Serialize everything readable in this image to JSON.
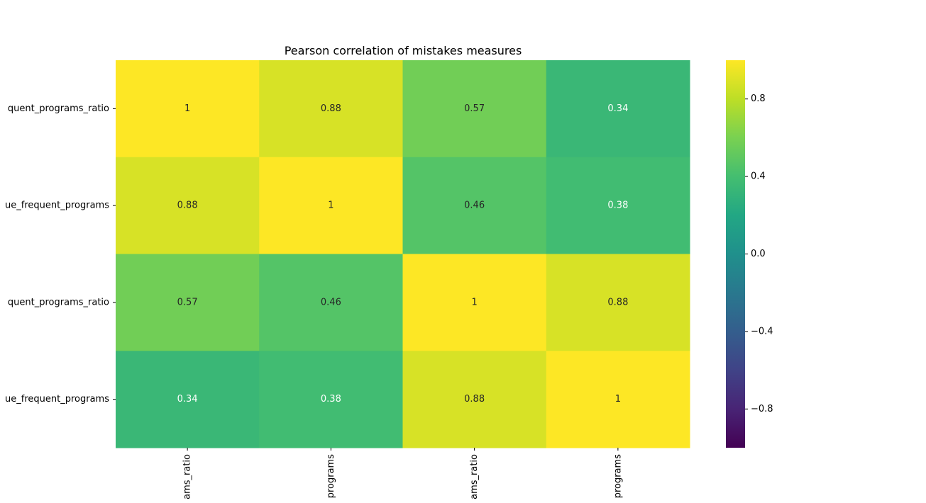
{
  "chart_data": {
    "type": "heatmap",
    "title": "Pearson correlation of mistakes measures",
    "row_labels": [
      "quent_programs_ratio",
      "ue_frequent_programs",
      "quent_programs_ratio",
      "ue_frequent_programs"
    ],
    "col_labels": [
      "ams_ratio",
      "programs",
      "ams_ratio",
      "programs"
    ],
    "values": [
      [
        1,
        0.88,
        0.57,
        0.34
      ],
      [
        0.88,
        1,
        0.46,
        0.38
      ],
      [
        0.57,
        0.46,
        1,
        0.88
      ],
      [
        0.34,
        0.38,
        0.88,
        1
      ]
    ],
    "annotations": [
      [
        "1",
        "0.88",
        "0.57",
        "0.34"
      ],
      [
        "0.88",
        "1",
        "0.46",
        "0.38"
      ],
      [
        "0.57",
        "0.46",
        "1",
        "0.88"
      ],
      [
        "0.34",
        "0.38",
        "0.88",
        "1"
      ]
    ],
    "colormap": "viridis",
    "vmin": -1,
    "vmax": 1,
    "colorbar_ticks": [
      0.8,
      0.4,
      0.0,
      -0.4,
      -0.8
    ],
    "colorbar_tick_labels": [
      "0.8",
      "0.4",
      "0.0",
      "−0.4",
      "−0.8"
    ]
  }
}
